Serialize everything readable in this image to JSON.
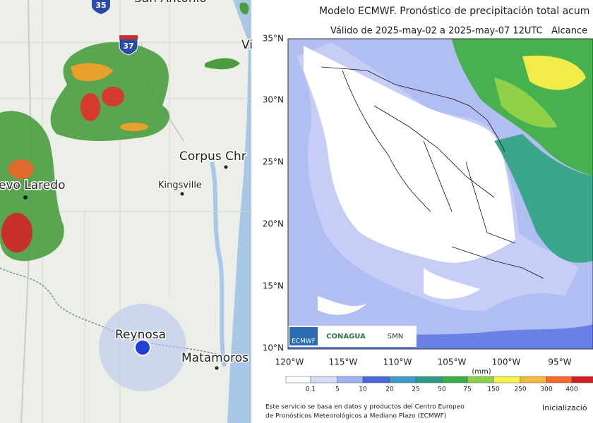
{
  "radar_map": {
    "highway_shields": [
      "35",
      "37"
    ],
    "cities": [
      "San Antonio",
      "Vi",
      "Corpus Chr",
      "Kingsville",
      "evo Laredo",
      "Reynosa",
      "Matamoros"
    ]
  },
  "forecast_map": {
    "title": "Modelo ECMWF. Pronóstico de precipitación total acum",
    "subtitle": "Válido de 2025-may-02 a 2025-may-07 12UTC   Alcance",
    "lat_labels": [
      "35°N",
      "30°N",
      "25°N",
      "20°N",
      "15°N",
      "10°N"
    ],
    "lon_labels": [
      "120°W",
      "115°W",
      "110°W",
      "105°W",
      "100°W",
      "95°W"
    ],
    "legend_unit": "(mm)",
    "legend_labels": [
      "0.1",
      "5",
      "10",
      "20",
      "25",
      "50",
      "75",
      "150",
      "250",
      "300",
      "400"
    ],
    "logos": [
      "ECMWF",
      "CONAGUA",
      "SMN"
    ],
    "footer": [
      "Este servicio se basa en datos y productos del Centro Europeo",
      "de Pronósticos Meteorológicos a Mediano Plazo (ECMWF)"
    ],
    "init_label": "Inicializació"
  }
}
